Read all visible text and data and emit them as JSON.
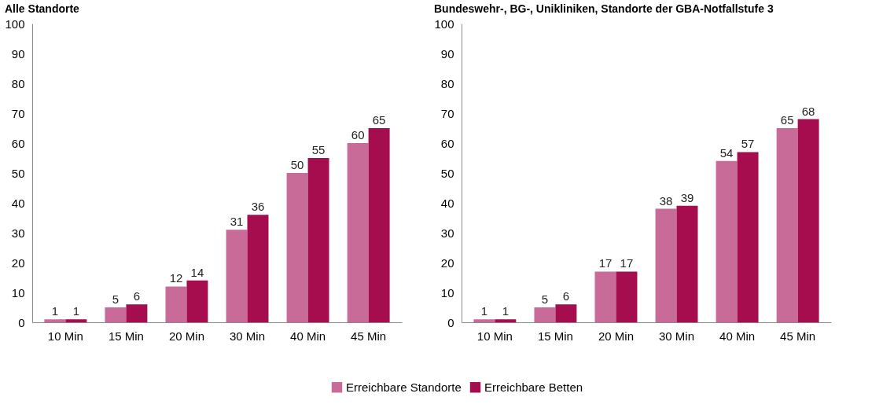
{
  "chart_data": [
    {
      "type": "bar",
      "title": "Alle Standorte",
      "categories": [
        "10 Min",
        "15 Min",
        "20 Min",
        "30 Min",
        "40 Min",
        "45 Min"
      ],
      "series": [
        {
          "name": "Erreichbare Standorte",
          "color": "#c96b98",
          "values": [
            1,
            5,
            12,
            31,
            50,
            60
          ]
        },
        {
          "name": "Erreichbare Betten",
          "color": "#a50d4f",
          "values": [
            1,
            6,
            14,
            36,
            55,
            65
          ]
        }
      ],
      "ylim": [
        0,
        100
      ],
      "yticks": [
        0,
        10,
        20,
        30,
        40,
        50,
        60,
        70,
        80,
        90,
        100
      ],
      "grid": false,
      "legend": "bottom",
      "data_labels": true
    },
    {
      "type": "bar",
      "title": "Bundeswehr-, BG-, Unikliniken, Standorte der GBA-Notfallstufe 3",
      "categories": [
        "10 Min",
        "15 Min",
        "20 Min",
        "30 Min",
        "40 Min",
        "45 Min"
      ],
      "series": [
        {
          "name": "Erreichbare Standorte",
          "color": "#c96b98",
          "values": [
            1,
            5,
            17,
            38,
            54,
            65
          ]
        },
        {
          "name": "Erreichbare Betten",
          "color": "#a50d4f",
          "values": [
            1,
            6,
            17,
            39,
            57,
            68
          ]
        }
      ],
      "ylim": [
        0,
        100
      ],
      "yticks": [
        0,
        10,
        20,
        30,
        40,
        50,
        60,
        70,
        80,
        90,
        100
      ],
      "grid": false,
      "legend": "bottom",
      "data_labels": true
    }
  ]
}
